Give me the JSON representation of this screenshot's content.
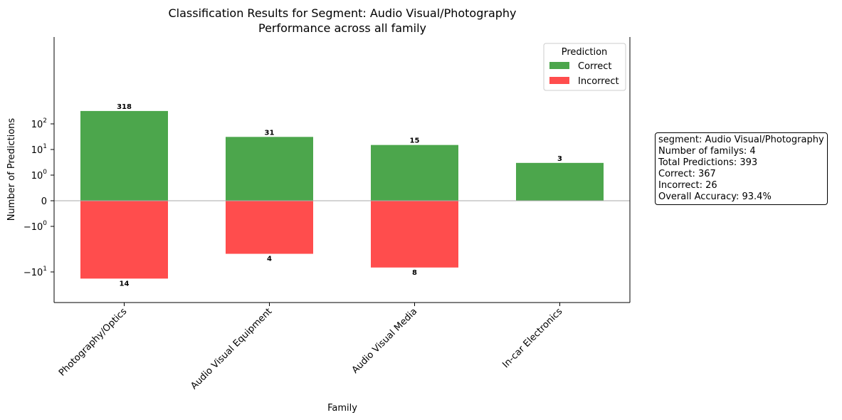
{
  "chart_data": {
    "type": "bar",
    "title": "Classification Results for Segment: Audio Visual/Photography",
    "subtitle": "Performance across all family",
    "xlabel": "Family",
    "ylabel": "Number of Predictions",
    "yscale": "symlog",
    "categories": [
      "Photography/Optics",
      "Audio Visual Equipment",
      "Audio Visual Media",
      "In-car Electronics"
    ],
    "series": [
      {
        "name": "Correct",
        "color": "#4ca64c",
        "values": [
          318,
          31,
          15,
          3
        ]
      },
      {
        "name": "Incorrect",
        "color": "#ff4d4d",
        "values": [
          -14,
          -4,
          -8,
          0
        ]
      }
    ],
    "bar_labels": {
      "correct": [
        "318",
        "31",
        "15",
        "3"
      ],
      "incorrect": [
        "14",
        "4",
        "8",
        ""
      ]
    },
    "yticks": [
      {
        "value": 100,
        "base": "10",
        "exp": "2",
        "sign": ""
      },
      {
        "value": 10,
        "base": "10",
        "exp": "1",
        "sign": ""
      },
      {
        "value": 1,
        "base": "10",
        "exp": "0",
        "sign": ""
      },
      {
        "value": 0,
        "text": "0"
      },
      {
        "value": -1,
        "base": "10",
        "exp": "0",
        "sign": "−"
      },
      {
        "value": -10,
        "base": "10",
        "exp": "1",
        "sign": "−"
      }
    ],
    "legend": {
      "title": "Prediction",
      "position": "top-right"
    },
    "grid": false
  },
  "stats": {
    "lines": [
      "segment: Audio Visual/Photography",
      "Number of familys: 4",
      "Total Predictions: 393",
      "Correct: 367",
      "Incorrect: 26",
      "Overall Accuracy: 93.4%"
    ]
  }
}
